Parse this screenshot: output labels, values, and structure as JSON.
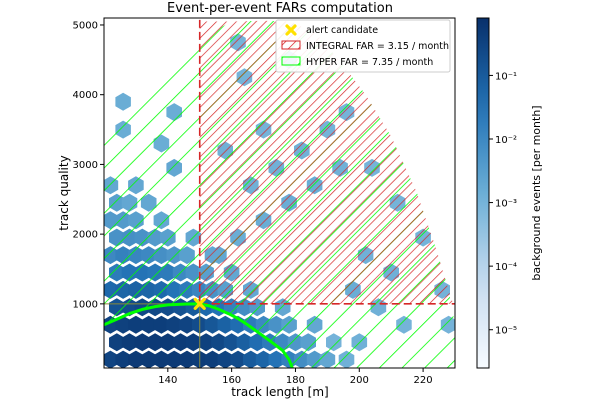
{
  "chart_data": {
    "type": "heatmap",
    "title": "Event-per-event FARs computation",
    "xlabel": "track length [m]",
    "ylabel": "track quality",
    "xlim": [
      120,
      230
    ],
    "ylim": [
      80,
      5100
    ],
    "x_ticks": [
      140,
      160,
      180,
      200,
      220
    ],
    "y_ticks": [
      1000,
      2000,
      3000,
      4000,
      5000
    ],
    "colorbar": {
      "label": "background events [per month]",
      "scale": "log",
      "range": [
        2.5e-06,
        0.8
      ],
      "ticks": [
        {
          "value": 0.1,
          "label": "10⁻¹"
        },
        {
          "value": 0.01,
          "label": "10⁻²"
        },
        {
          "value": 0.001,
          "label": "10⁻³"
        },
        {
          "value": 0.0001,
          "label": "10⁻⁴"
        },
        {
          "value": 1e-05,
          "label": "10⁻⁵"
        }
      ],
      "colormap": "Blues"
    },
    "candidate": {
      "x": 150,
      "y": 1000,
      "label": "alert candidate",
      "color": "#ffe100"
    },
    "integral_region": {
      "label": "INTEGRAL FAR = 3.15 / month",
      "color": "#d62728",
      "x_min": 150,
      "y_min": 1000,
      "boundary": [
        [
          150,
          5050
        ],
        [
          160,
          5050
        ],
        [
          170,
          5060
        ],
        [
          178,
          5050
        ],
        [
          186,
          4900
        ],
        [
          194,
          4480
        ],
        [
          202,
          4000
        ],
        [
          210,
          3400
        ],
        [
          218,
          2600
        ],
        [
          224,
          1800
        ],
        [
          229,
          1050
        ]
      ]
    },
    "hyper_region": {
      "label": "HYPER FAR = 7.35 / month",
      "color": "#00ff00",
      "outer_boundary": [
        [
          124,
          3640
        ],
        [
          132,
          4100
        ],
        [
          142,
          4500
        ],
        [
          150,
          4800
        ],
        [
          160,
          5050
        ],
        [
          170,
          5060
        ],
        [
          178,
          5050
        ],
        [
          186,
          4900
        ],
        [
          194,
          4480
        ],
        [
          202,
          4000
        ],
        [
          210,
          3400
        ],
        [
          218,
          2600
        ],
        [
          224,
          1800
        ],
        [
          228,
          1200
        ],
        [
          230,
          700
        ]
      ],
      "contour_line": [
        [
          120,
          700
        ],
        [
          124,
          780
        ],
        [
          128,
          860
        ],
        [
          132,
          920
        ],
        [
          136,
          960
        ],
        [
          140,
          985
        ],
        [
          146,
          998
        ],
        [
          150,
          1000
        ],
        [
          153,
          970
        ],
        [
          156,
          920
        ],
        [
          159,
          860
        ],
        [
          162,
          790
        ],
        [
          165,
          700
        ],
        [
          168,
          600
        ],
        [
          172,
          470
        ],
        [
          176,
          330
        ],
        [
          178,
          200
        ],
        [
          179,
          80
        ]
      ]
    },
    "hexbins": [
      {
        "x": 122,
        "y": 200,
        "v": 0.3
      },
      {
        "x": 126,
        "y": 200,
        "v": 0.4
      },
      {
        "x": 130,
        "y": 200,
        "v": 0.5
      },
      {
        "x": 134,
        "y": 200,
        "v": 0.5
      },
      {
        "x": 138,
        "y": 200,
        "v": 0.5
      },
      {
        "x": 142,
        "y": 200,
        "v": 0.5
      },
      {
        "x": 146,
        "y": 200,
        "v": 0.5
      },
      {
        "x": 150,
        "y": 200,
        "v": 0.45
      },
      {
        "x": 154,
        "y": 200,
        "v": 0.4
      },
      {
        "x": 158,
        "y": 200,
        "v": 0.3
      },
      {
        "x": 162,
        "y": 200,
        "v": 0.2
      },
      {
        "x": 166,
        "y": 200,
        "v": 0.1
      },
      {
        "x": 170,
        "y": 200,
        "v": 0.06
      },
      {
        "x": 174,
        "y": 200,
        "v": 0.03
      },
      {
        "x": 178,
        "y": 200,
        "v": 0.015
      },
      {
        "x": 182,
        "y": 200,
        "v": 0.008
      },
      {
        "x": 186,
        "y": 200,
        "v": 0.004
      },
      {
        "x": 190,
        "y": 200,
        "v": 0.002
      },
      {
        "x": 124,
        "y": 450,
        "v": 0.35
      },
      {
        "x": 128,
        "y": 450,
        "v": 0.45
      },
      {
        "x": 132,
        "y": 450,
        "v": 0.5
      },
      {
        "x": 136,
        "y": 450,
        "v": 0.5
      },
      {
        "x": 140,
        "y": 450,
        "v": 0.5
      },
      {
        "x": 144,
        "y": 450,
        "v": 0.45
      },
      {
        "x": 148,
        "y": 450,
        "v": 0.4
      },
      {
        "x": 152,
        "y": 450,
        "v": 0.35
      },
      {
        "x": 156,
        "y": 450,
        "v": 0.25
      },
      {
        "x": 160,
        "y": 450,
        "v": 0.15
      },
      {
        "x": 164,
        "y": 450,
        "v": 0.08
      },
      {
        "x": 168,
        "y": 450,
        "v": 0.04
      },
      {
        "x": 172,
        "y": 450,
        "v": 0.02
      },
      {
        "x": 176,
        "y": 450,
        "v": 0.01
      },
      {
        "x": 180,
        "y": 450,
        "v": 0.005
      },
      {
        "x": 184,
        "y": 450,
        "v": 0.003
      },
      {
        "x": 192,
        "y": 450,
        "v": 0.001
      },
      {
        "x": 122,
        "y": 700,
        "v": 0.3
      },
      {
        "x": 126,
        "y": 700,
        "v": 0.35
      },
      {
        "x": 130,
        "y": 700,
        "v": 0.4
      },
      {
        "x": 134,
        "y": 700,
        "v": 0.4
      },
      {
        "x": 138,
        "y": 700,
        "v": 0.4
      },
      {
        "x": 142,
        "y": 700,
        "v": 0.35
      },
      {
        "x": 146,
        "y": 700,
        "v": 0.3
      },
      {
        "x": 150,
        "y": 700,
        "v": 0.2
      },
      {
        "x": 154,
        "y": 700,
        "v": 0.12
      },
      {
        "x": 158,
        "y": 700,
        "v": 0.07
      },
      {
        "x": 162,
        "y": 700,
        "v": 0.04
      },
      {
        "x": 166,
        "y": 700,
        "v": 0.02
      },
      {
        "x": 170,
        "y": 700,
        "v": 0.01
      },
      {
        "x": 174,
        "y": 700,
        "v": 0.006
      },
      {
        "x": 178,
        "y": 700,
        "v": 0.003
      },
      {
        "x": 186,
        "y": 700,
        "v": 0.002
      },
      {
        "x": 124,
        "y": 950,
        "v": 0.15
      },
      {
        "x": 128,
        "y": 950,
        "v": 0.2
      },
      {
        "x": 132,
        "y": 950,
        "v": 0.25
      },
      {
        "x": 136,
        "y": 950,
        "v": 0.25
      },
      {
        "x": 140,
        "y": 950,
        "v": 0.2
      },
      {
        "x": 144,
        "y": 950,
        "v": 0.15
      },
      {
        "x": 148,
        "y": 950,
        "v": 0.1
      },
      {
        "x": 152,
        "y": 950,
        "v": 0.05
      },
      {
        "x": 156,
        "y": 950,
        "v": 0.03
      },
      {
        "x": 160,
        "y": 950,
        "v": 0.015
      },
      {
        "x": 164,
        "y": 950,
        "v": 0.008
      },
      {
        "x": 168,
        "y": 950,
        "v": 0.004
      },
      {
        "x": 176,
        "y": 950,
        "v": 0.002
      },
      {
        "x": 122,
        "y": 1200,
        "v": 0.05
      },
      {
        "x": 126,
        "y": 1200,
        "v": 0.06
      },
      {
        "x": 130,
        "y": 1200,
        "v": 0.07
      },
      {
        "x": 134,
        "y": 1200,
        "v": 0.06
      },
      {
        "x": 138,
        "y": 1200,
        "v": 0.05
      },
      {
        "x": 142,
        "y": 1200,
        "v": 0.03
      },
      {
        "x": 146,
        "y": 1200,
        "v": 0.02
      },
      {
        "x": 150,
        "y": 1200,
        "v": 0.012
      },
      {
        "x": 154,
        "y": 1200,
        "v": 0.006
      },
      {
        "x": 158,
        "y": 1200,
        "v": 0.003
      },
      {
        "x": 166,
        "y": 1200,
        "v": 0.002
      },
      {
        "x": 124,
        "y": 1450,
        "v": 0.02
      },
      {
        "x": 128,
        "y": 1450,
        "v": 0.03
      },
      {
        "x": 132,
        "y": 1450,
        "v": 0.03
      },
      {
        "x": 136,
        "y": 1450,
        "v": 0.025
      },
      {
        "x": 140,
        "y": 1450,
        "v": 0.02
      },
      {
        "x": 144,
        "y": 1450,
        "v": 0.01
      },
      {
        "x": 148,
        "y": 1450,
        "v": 0.006
      },
      {
        "x": 152,
        "y": 1450,
        "v": 0.003
      },
      {
        "x": 160,
        "y": 1450,
        "v": 0.002
      },
      {
        "x": 122,
        "y": 1700,
        "v": 0.01
      },
      {
        "x": 126,
        "y": 1700,
        "v": 0.015
      },
      {
        "x": 130,
        "y": 1700,
        "v": 0.012
      },
      {
        "x": 134,
        "y": 1700,
        "v": 0.01
      },
      {
        "x": 138,
        "y": 1700,
        "v": 0.007
      },
      {
        "x": 142,
        "y": 1700,
        "v": 0.005
      },
      {
        "x": 146,
        "y": 1700,
        "v": 0.003
      },
      {
        "x": 154,
        "y": 1700,
        "v": 0.002
      },
      {
        "x": 124,
        "y": 1950,
        "v": 0.006
      },
      {
        "x": 128,
        "y": 1950,
        "v": 0.007
      },
      {
        "x": 132,
        "y": 1950,
        "v": 0.006
      },
      {
        "x": 136,
        "y": 1950,
        "v": 0.004
      },
      {
        "x": 140,
        "y": 1950,
        "v": 0.003
      },
      {
        "x": 148,
        "y": 1950,
        "v": 0.002
      },
      {
        "x": 122,
        "y": 2200,
        "v": 0.004
      },
      {
        "x": 126,
        "y": 2200,
        "v": 0.004
      },
      {
        "x": 130,
        "y": 2200,
        "v": 0.003
      },
      {
        "x": 138,
        "y": 2200,
        "v": 0.002
      },
      {
        "x": 124,
        "y": 2450,
        "v": 0.003
      },
      {
        "x": 128,
        "y": 2450,
        "v": 0.002
      },
      {
        "x": 134,
        "y": 2450,
        "v": 0.002
      },
      {
        "x": 122,
        "y": 2700,
        "v": 0.002
      },
      {
        "x": 130,
        "y": 2700,
        "v": 0.002
      },
      {
        "x": 142,
        "y": 2950,
        "v": 0.002
      },
      {
        "x": 138,
        "y": 3300,
        "v": 0.0015
      },
      {
        "x": 126,
        "y": 3500,
        "v": 0.0015
      },
      {
        "x": 142,
        "y": 3750,
        "v": 0.0015
      },
      {
        "x": 126,
        "y": 3900,
        "v": 0.0015
      },
      {
        "x": 156,
        "y": 1700,
        "v": 0.002
      },
      {
        "x": 162,
        "y": 1950,
        "v": 0.0015
      },
      {
        "x": 170,
        "y": 2200,
        "v": 0.0015
      },
      {
        "x": 178,
        "y": 2450,
        "v": 0.0015
      },
      {
        "x": 186,
        "y": 2700,
        "v": 0.0015
      },
      {
        "x": 194,
        "y": 2950,
        "v": 0.0012
      },
      {
        "x": 166,
        "y": 2700,
        "v": 0.0012
      },
      {
        "x": 174,
        "y": 2950,
        "v": 0.0012
      },
      {
        "x": 182,
        "y": 3200,
        "v": 0.0012
      },
      {
        "x": 158,
        "y": 3200,
        "v": 0.0012
      },
      {
        "x": 190,
        "y": 3500,
        "v": 0.001
      },
      {
        "x": 170,
        "y": 3500,
        "v": 0.001
      },
      {
        "x": 164,
        "y": 4250,
        "v": 0.001
      },
      {
        "x": 178,
        "y": 4500,
        "v": 0.001
      },
      {
        "x": 162,
        "y": 4750,
        "v": 0.001
      },
      {
        "x": 196,
        "y": 3750,
        "v": 0.001
      },
      {
        "x": 204,
        "y": 2950,
        "v": 0.001
      },
      {
        "x": 212,
        "y": 2450,
        "v": 0.001
      },
      {
        "x": 220,
        "y": 1950,
        "v": 0.001
      },
      {
        "x": 226,
        "y": 1200,
        "v": 0.001
      },
      {
        "x": 228,
        "y": 700,
        "v": 0.001
      },
      {
        "x": 202,
        "y": 1700,
        "v": 0.0012
      },
      {
        "x": 210,
        "y": 1450,
        "v": 0.0012
      },
      {
        "x": 198,
        "y": 1200,
        "v": 0.0015
      },
      {
        "x": 206,
        "y": 950,
        "v": 0.0012
      },
      {
        "x": 214,
        "y": 700,
        "v": 0.001
      },
      {
        "x": 200,
        "y": 450,
        "v": 0.0012
      },
      {
        "x": 196,
        "y": 200,
        "v": 0.0012
      }
    ]
  }
}
